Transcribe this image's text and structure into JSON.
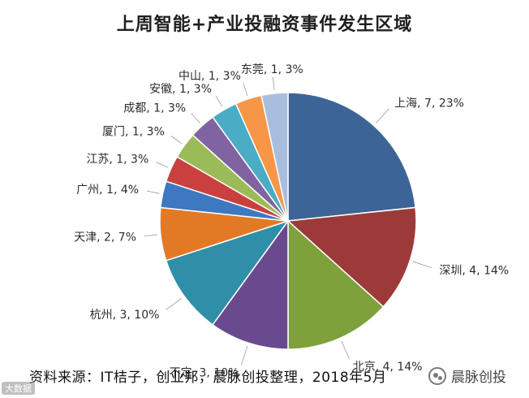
{
  "chart_data": {
    "type": "pie",
    "title": "上周智能+产业投融资事件发生区域",
    "slices": [
      {
        "name": "上海",
        "value": 7,
        "percent": "23%",
        "color": "#3c6496"
      },
      {
        "name": "深圳",
        "value": 4,
        "percent": "14%",
        "color": "#9c3a3a"
      },
      {
        "name": "北京",
        "value": 4,
        "percent": "14%",
        "color": "#7ea13b"
      },
      {
        "name": "不定",
        "value": 3,
        "percent": "10%",
        "color": "#6a4a8f"
      },
      {
        "name": "杭州",
        "value": 3,
        "percent": "10%",
        "color": "#2f8ea8"
      },
      {
        "name": "天津",
        "value": 2,
        "percent": "7%",
        "color": "#e27a25"
      },
      {
        "name": "广州",
        "value": 1,
        "percent": "4%",
        "color": "#3d78c0"
      },
      {
        "name": "江苏",
        "value": 1,
        "percent": "3%",
        "color": "#c9403e"
      },
      {
        "name": "厦门",
        "value": 1,
        "percent": "3%",
        "color": "#9bbb59"
      },
      {
        "name": "成都",
        "value": 1,
        "percent": "3%",
        "color": "#8064a2"
      },
      {
        "name": "安徽",
        "value": 1,
        "percent": "3%",
        "color": "#4bacc6"
      },
      {
        "name": "中山",
        "value": 1,
        "percent": "3%",
        "color": "#f79646"
      },
      {
        "name": "东莞",
        "value": 1,
        "percent": "3%",
        "color": "#a9bedf"
      }
    ]
  },
  "footer": {
    "source": "资料来源：IT桔子，创业邦，晨脉创投整理，2018年5月"
  },
  "watermark": {
    "left": "大数据",
    "brand": "晨脉创投",
    "brand_icon": "wechat-icon"
  }
}
